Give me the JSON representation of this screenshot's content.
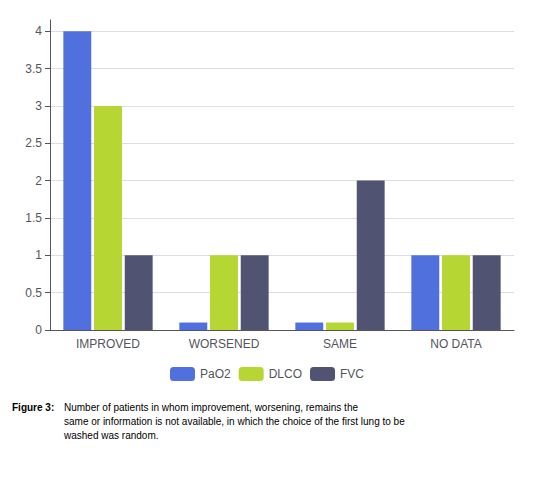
{
  "chart_data": {
    "type": "bar",
    "categories": [
      "IMPROVED",
      "WORSENED",
      "SAME",
      "NO DATA"
    ],
    "series": [
      {
        "name": "PaO2",
        "values": [
          4,
          0.1,
          0.1,
          1
        ]
      },
      {
        "name": "DLCO",
        "values": [
          3,
          1,
          0.1,
          1
        ]
      },
      {
        "name": "FVC",
        "values": [
          1,
          1,
          2,
          1
        ]
      }
    ],
    "ylim": [
      0,
      4.15
    ],
    "yticks": [
      0,
      0.5,
      1,
      1.5,
      2,
      2.5,
      3,
      3.5,
      4
    ],
    "grid": true,
    "legend": "bottom",
    "annotations": [
      "Figure 3:",
      "Number of patients in whom improvement, worsening, remains the\nsame or information is not available, in which the choice of the first lung to be\nwashed was random."
    ]
  }
}
